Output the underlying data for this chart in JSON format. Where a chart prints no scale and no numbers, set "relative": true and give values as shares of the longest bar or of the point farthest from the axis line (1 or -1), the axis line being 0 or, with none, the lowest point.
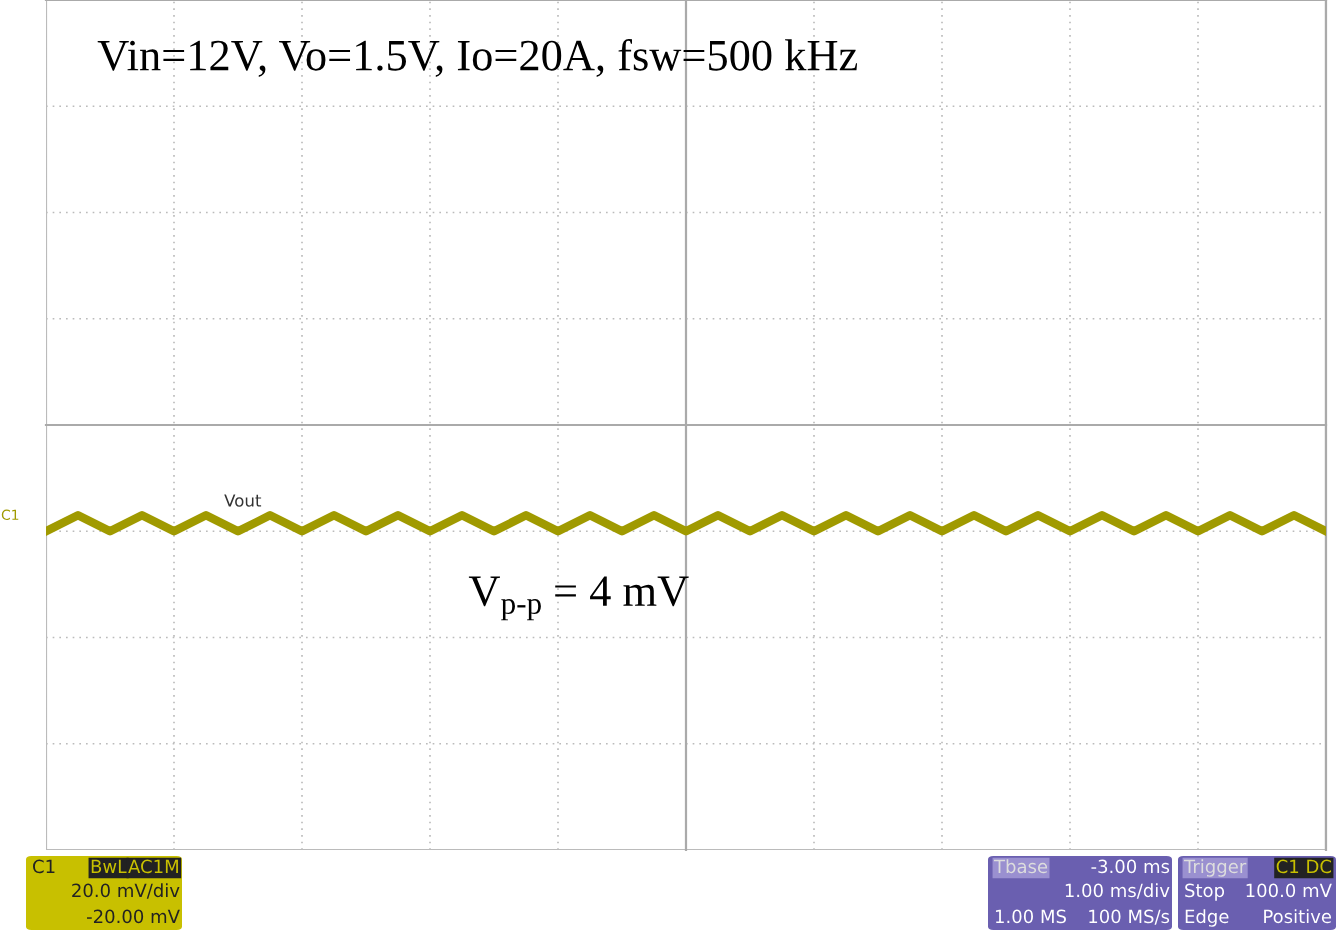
{
  "chart_data": {
    "type": "line",
    "relative": true,
    "grid": true,
    "tick_labels": false,
    "categories": [
      null,
      null,
      null,
      null,
      null,
      null,
      null,
      null,
      null,
      null,
      null,
      null,
      null,
      null,
      null,
      null,
      null,
      null,
      null,
      null,
      null,
      null,
      null,
      null,
      null,
      null,
      null,
      null,
      null,
      null,
      null,
      null,
      null,
      null,
      null,
      null,
      null,
      null,
      null,
      null,
      null
    ],
    "series": [
      {
        "name": "Vout",
        "color": "#a09a00",
        "values": [
          -1,
          -0.85,
          -1,
          -0.85,
          -1,
          -0.85,
          -1,
          -0.85,
          -1,
          -0.85,
          -1,
          -0.85,
          -1,
          -0.85,
          -1,
          -0.85,
          -1,
          -0.85,
          -1,
          -0.85,
          -1,
          -0.85,
          -1,
          -0.85,
          -1,
          -0.85,
          -1,
          -0.85,
          -1,
          -0.85,
          -1,
          -0.85,
          -1,
          -0.85,
          -1,
          -0.85,
          -1,
          -0.85,
          -1,
          -0.85,
          -1
        ]
      }
    ],
    "annotations": [
      "Vin=12V, Vo=1.5V, Io=20A, fsw=500 kHz",
      "V$_{p-p}$ = 4 mV",
      "C1",
      "C1",
      "BwL",
      "AC1M",
      "20.0 mV/div",
      "-20.00 mV",
      "Tbase",
      "-3.00 ms",
      "1.00 ms/div",
      "1.00 MS",
      "100 MS/s",
      "Trigger",
      "C1 DC",
      "Stop",
      "100.0 mV",
      "Edge",
      "Positive"
    ]
  }
}
